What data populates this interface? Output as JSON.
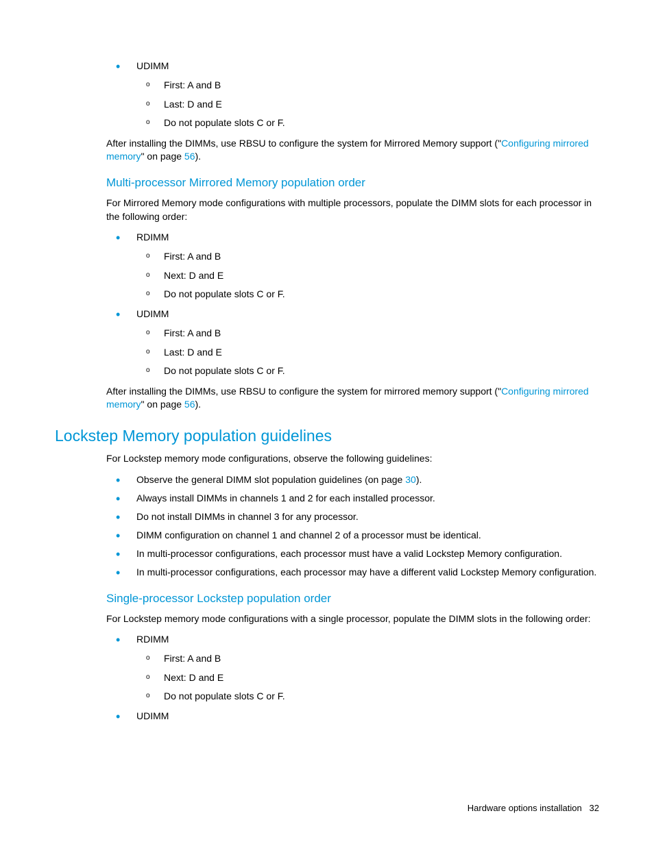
{
  "colors": {
    "link": "#0096d6",
    "heading": "#0096d6",
    "bullet": "#0096d6",
    "text": "#000000",
    "bg": "#ffffff"
  },
  "typography": {
    "body_pt": 14,
    "h2_pt": 23,
    "h3_pt": 17
  },
  "s1": {
    "li0": "UDIMM",
    "li0_0": "First: A and B",
    "li0_1": "Last: D and E",
    "li0_2": "Do not populate slots C or F.",
    "p_a": "After installing the DIMMs, use RBSU to configure the system for Mirrored Memory support (\"",
    "link1": "Configuring mirrored memory",
    "p_b": "\" on page ",
    "link2": "56",
    "p_c": ")."
  },
  "s2": {
    "h": "Multi-processor Mirrored Memory population order",
    "p": "For Mirrored Memory mode configurations with multiple processors, populate the DIMM slots for each processor in the following order:",
    "li0": "RDIMM",
    "li0_0": "First: A and B",
    "li0_1": "Next: D and E",
    "li0_2": "Do not populate slots C or F.",
    "li1": "UDIMM",
    "li1_0": "First: A and B",
    "li1_1": "Last: D and E",
    "li1_2": "Do not populate slots C or F.",
    "p2_a": "After installing the DIMMs, use RBSU to configure the system for mirrored memory support (\"",
    "link1": "Configuring mirrored memory",
    "p2_b": "\" on page ",
    "link2": "56",
    "p2_c": ")."
  },
  "s3": {
    "h": "Lockstep Memory population guidelines",
    "p": "For Lockstep memory mode configurations, observe the following guidelines:",
    "li0_a": "Observe the general DIMM slot population guidelines (on page ",
    "li0_link": "30",
    "li0_b": ").",
    "li1": "Always install DIMMs in channels 1 and 2 for each installed processor.",
    "li2": "Do not install DIMMs in channel 3 for any processor.",
    "li3": "DIMM configuration on channel 1 and channel 2 of a processor must be identical.",
    "li4": "In multi-processor configurations, each processor must have a valid Lockstep Memory configuration.",
    "li5": "In multi-processor configurations, each processor may have a different valid Lockstep Memory configuration."
  },
  "s4": {
    "h": "Single-processor Lockstep population order",
    "p": "For Lockstep memory mode configurations with a single processor, populate the DIMM slots in the following order:",
    "li0": "RDIMM",
    "li0_0": "First: A and B",
    "li0_1": "Next: D and E",
    "li0_2": "Do not populate slots C or F.",
    "li1": "UDIMM"
  },
  "footer": {
    "label": "Hardware options installation",
    "page": "32"
  }
}
